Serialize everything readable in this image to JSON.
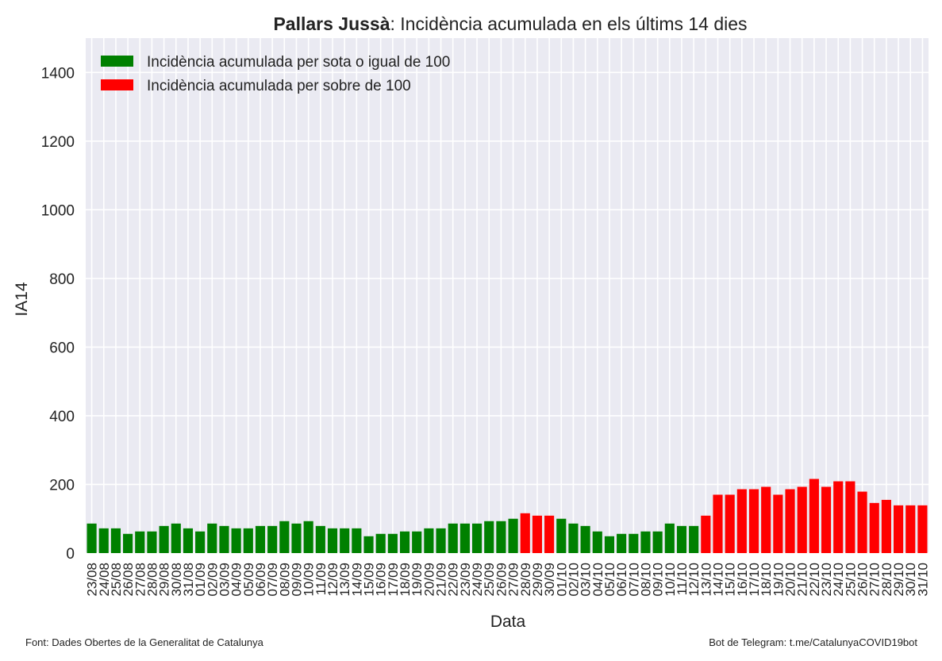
{
  "chart_data": {
    "type": "bar",
    "title_bold": "Pallars Jussà",
    "title": ": Incidència acumulada en els últims 14 dies",
    "x_label": "Data",
    "y_label": "IA14",
    "source": "Font: Dades Obertes de la Generalitat de Catalunya",
    "credit": "Bot de Telegram: t.me/CatalunyaCOVID19bot",
    "categories": [
      "23/08",
      "24/08",
      "25/08",
      "26/08",
      "27/08",
      "28/08",
      "29/08",
      "30/08",
      "31/08",
      "01/09",
      "02/09",
      "03/09",
      "04/09",
      "05/09",
      "06/09",
      "07/09",
      "08/09",
      "09/09",
      "10/09",
      "11/09",
      "12/09",
      "13/09",
      "14/09",
      "15/09",
      "16/09",
      "17/09",
      "18/09",
      "19/09",
      "20/09",
      "21/09",
      "22/09",
      "23/09",
      "24/09",
      "25/09",
      "26/09",
      "27/09",
      "28/09",
      "29/09",
      "30/09",
      "01/10",
      "02/10",
      "03/10",
      "04/10",
      "05/10",
      "06/10",
      "07/10",
      "08/10",
      "09/10",
      "10/10",
      "11/10",
      "12/10",
      "13/10",
      "14/10",
      "15/10",
      "16/10",
      "17/10",
      "18/10",
      "19/10",
      "20/10",
      "21/10",
      "22/10",
      "23/10",
      "24/10",
      "25/10",
      "26/10",
      "27/10",
      "28/10",
      "29/10",
      "30/10",
      "31/10"
    ],
    "series": [
      {
        "name": "Incidència acumulada per sota o igual de 100",
        "color": "#008000",
        "values": [
          86,
          72,
          72,
          56,
          63,
          63,
          79,
          86,
          72,
          63,
          86,
          79,
          72,
          72,
          79,
          79,
          93,
          86,
          93,
          79,
          72,
          72,
          72,
          49,
          56,
          56,
          63,
          63,
          72,
          72,
          86,
          86,
          86,
          93,
          93,
          100,
          null,
          null,
          null,
          100,
          86,
          79,
          63,
          49,
          56,
          56,
          63,
          63,
          86,
          79,
          79,
          null,
          null,
          null,
          null,
          null,
          null,
          null,
          null,
          null,
          null,
          null,
          null,
          null,
          null,
          null,
          null,
          null,
          null,
          null
        ]
      },
      {
        "name": "Incidència acumulada per sobre de 100",
        "color": "#ff0000",
        "values": [
          null,
          null,
          null,
          null,
          null,
          null,
          null,
          null,
          null,
          null,
          null,
          null,
          null,
          null,
          null,
          null,
          null,
          null,
          null,
          null,
          null,
          null,
          null,
          null,
          null,
          null,
          null,
          null,
          null,
          null,
          null,
          null,
          null,
          null,
          null,
          null,
          116,
          109,
          109,
          null,
          null,
          null,
          null,
          null,
          null,
          null,
          null,
          null,
          null,
          null,
          null,
          109,
          170,
          170,
          186,
          186,
          193,
          170,
          186,
          193,
          216,
          193,
          209,
          209,
          179,
          146,
          155,
          139,
          139,
          139
        ]
      }
    ],
    "ylim": [
      0,
      1500
    ],
    "yticks": [
      0,
      200,
      400,
      600,
      800,
      1000,
      1200,
      1400
    ],
    "grid": true,
    "legend": "upper left"
  }
}
